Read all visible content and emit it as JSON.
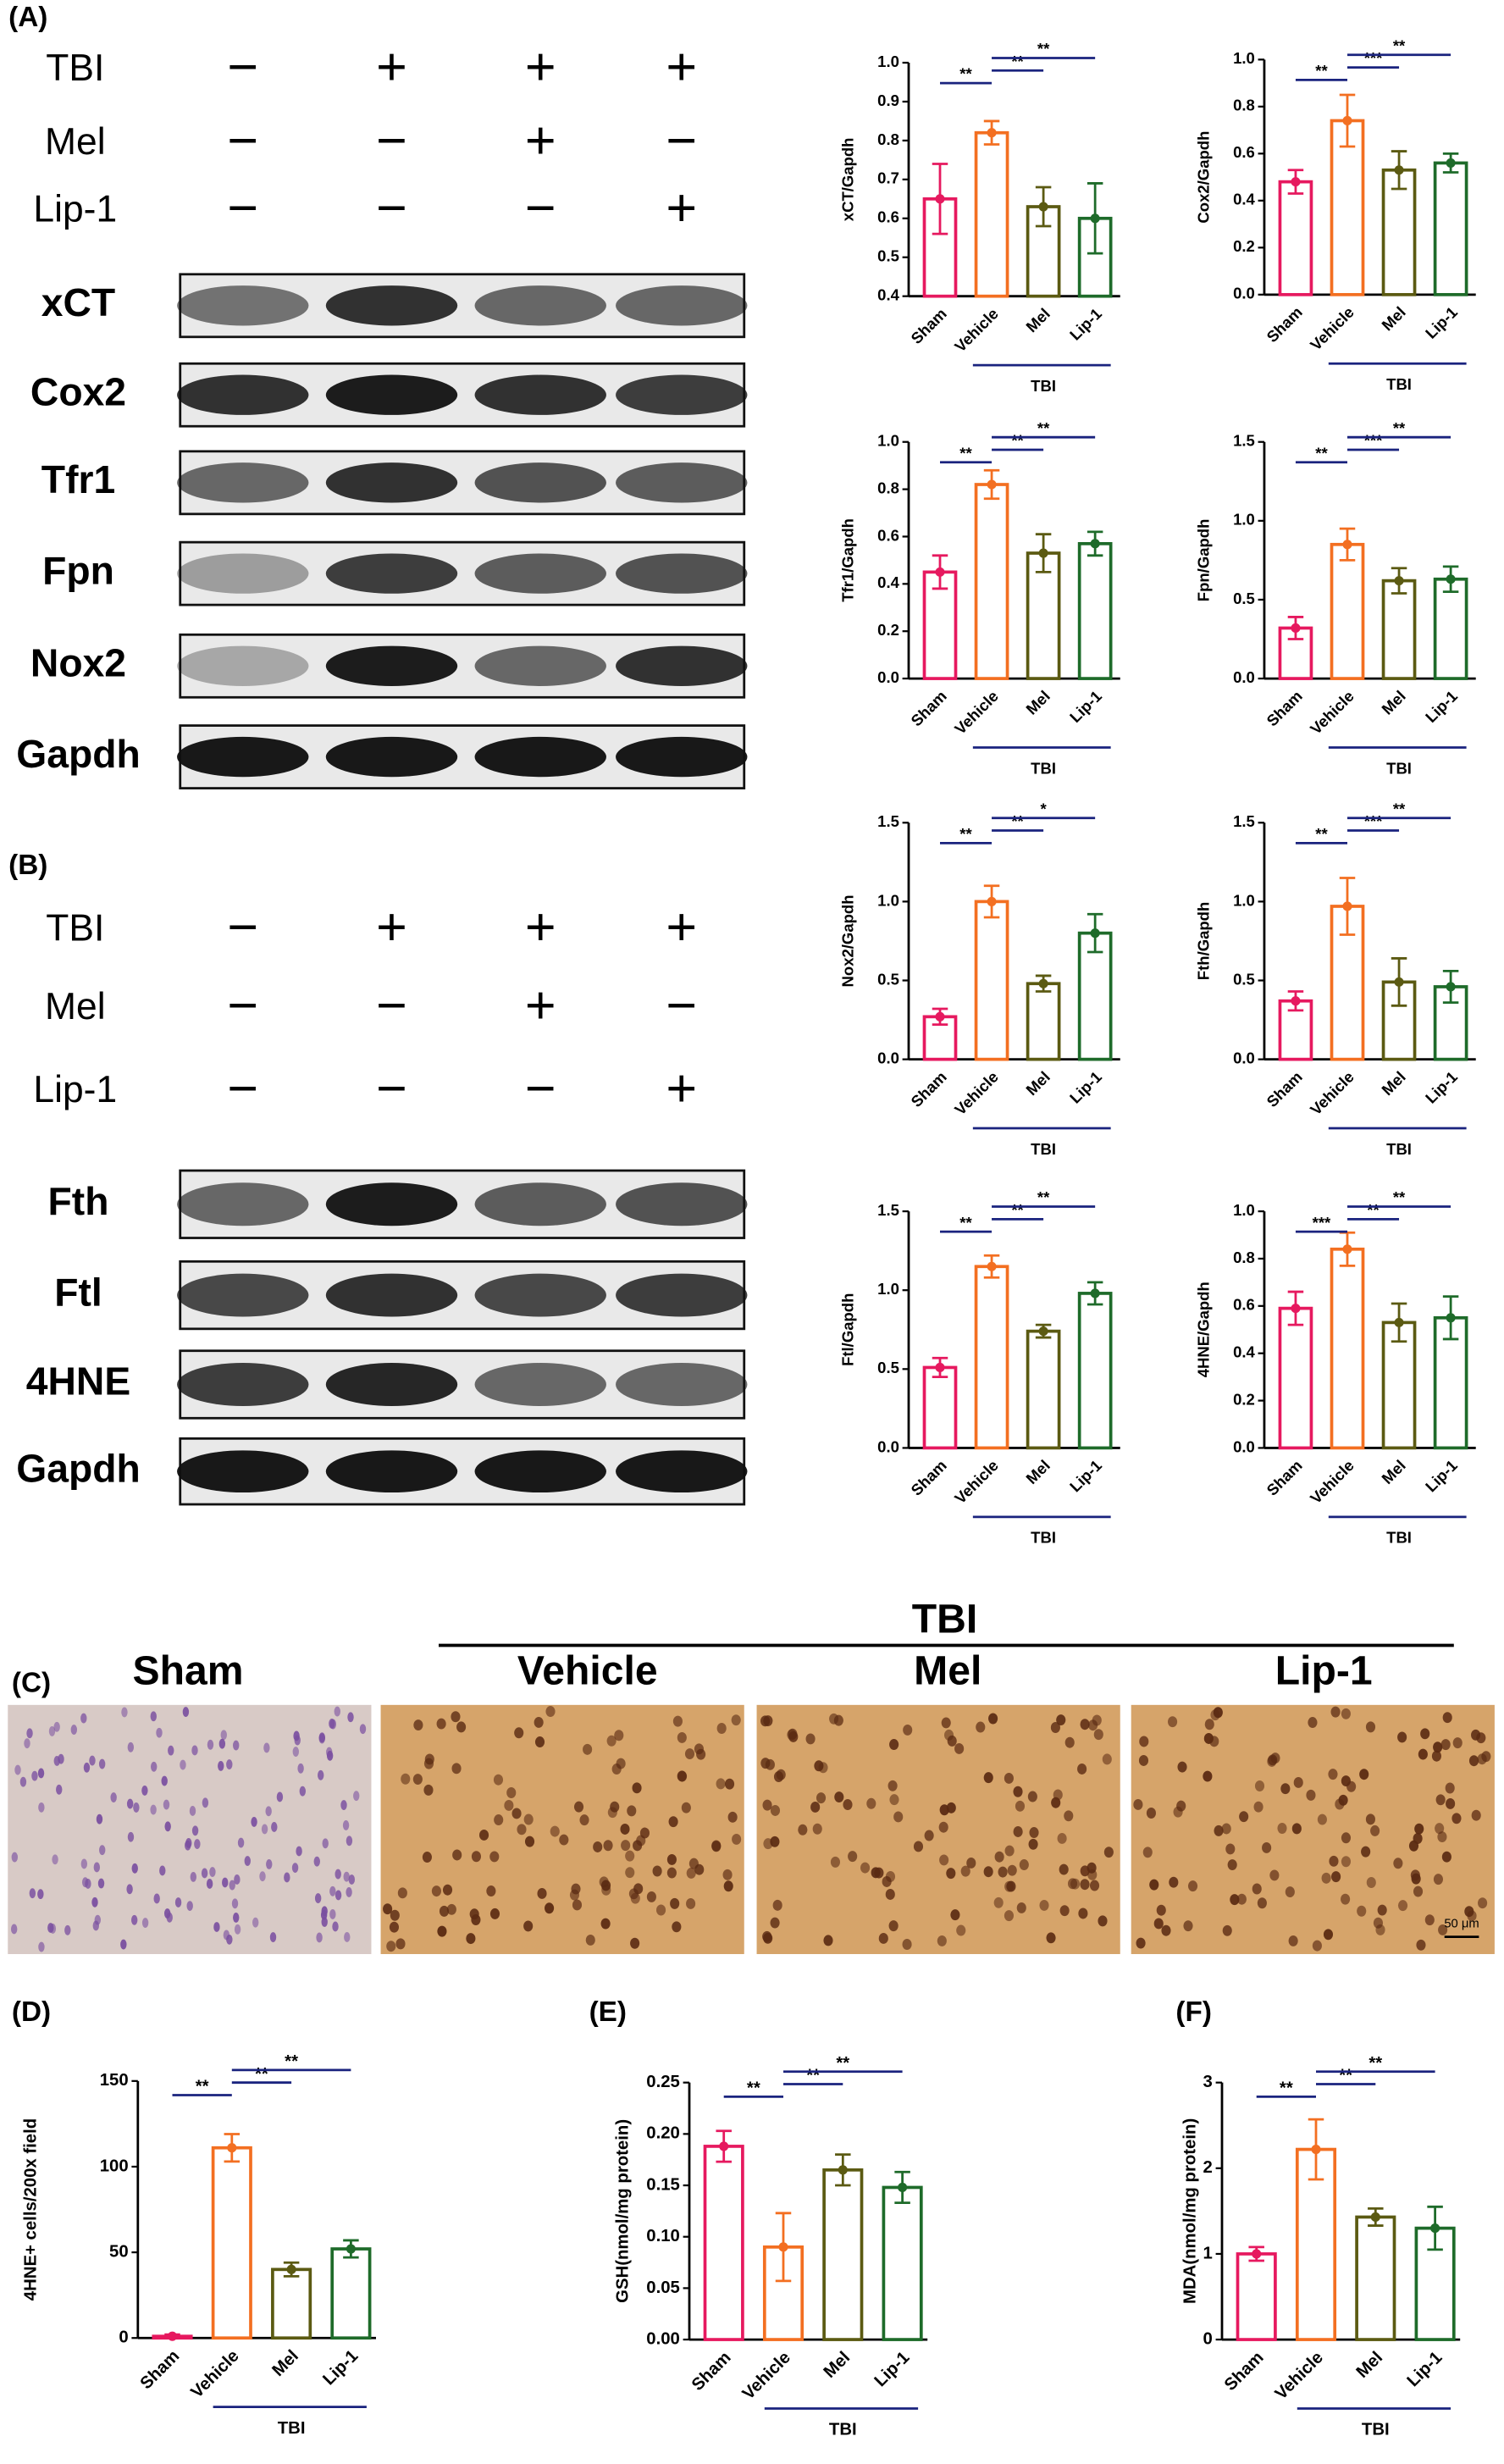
{
  "panel_labels": [
    "(A)",
    "(B)",
    "(C)",
    "(D)",
    "(E)",
    "(F)"
  ],
  "blots": [
    {
      "treatments": [
        {
          "name": "TBI",
          "signs": [
            "−",
            "+",
            "+",
            "+"
          ]
        },
        {
          "name": "Mel",
          "signs": [
            "−",
            "−",
            "+",
            "−"
          ]
        },
        {
          "name": "Lip-1",
          "signs": [
            "−",
            "−",
            "−",
            "+"
          ]
        }
      ],
      "proteins": [
        "xCT",
        "Cox2",
        "Tfr1",
        "Fpn",
        "Nox2",
        "Gapdh"
      ]
    },
    {
      "treatments": [
        {
          "name": "TBI",
          "signs": [
            "−",
            "+",
            "+",
            "+"
          ]
        },
        {
          "name": "Mel",
          "signs": [
            "−",
            "−",
            "+",
            "−"
          ]
        },
        {
          "name": "Lip-1",
          "signs": [
            "−",
            "−",
            "−",
            "+"
          ]
        }
      ],
      "proteins": [
        "Fth",
        "Ftl",
        "4HNE",
        "Gapdh"
      ]
    }
  ],
  "micrograph": {
    "group_label": "TBI",
    "headers": [
      "Sham",
      "Vehicle",
      "Mel",
      "Lip-1"
    ],
    "scale_bar": "50 μm"
  },
  "chart_data": [
    {
      "type": "bar",
      "y_label": "xCT/Gapdh",
      "categories": [
        "Sham",
        "Vehicle",
        "Mel",
        "Lip-1"
      ],
      "values": [
        0.65,
        0.82,
        0.63,
        0.6
      ],
      "errors": [
        0.09,
        0.03,
        0.05,
        0.09
      ],
      "colors": [
        "#e6195f",
        "#f36f21",
        "#5b5a12",
        "#1e6b2a"
      ],
      "group_label": "TBI",
      "ylim": [
        0.4,
        1
      ],
      "yticks": [
        0.4,
        0.5,
        0.6,
        0.7,
        0.8,
        0.9,
        {
          "value": 1,
          "label": "1.0"
        }
      ],
      "significance": [
        {
          "from": "Sham",
          "to": "Vehicle",
          "label": "**"
        },
        {
          "from": "Vehicle",
          "to": "Mel",
          "label": "**"
        },
        {
          "from": "Vehicle",
          "to": "Lip-1",
          "label": "**"
        }
      ]
    },
    {
      "type": "bar",
      "y_label": "Cox2/Gapdh",
      "categories": [
        "Sham",
        "Vehicle",
        "Mel",
        "Lip-1"
      ],
      "values": [
        0.48,
        0.74,
        0.53,
        0.56
      ],
      "errors": [
        0.05,
        0.11,
        0.08,
        0.04
      ],
      "colors": [
        "#e6195f",
        "#f36f21",
        "#5b5a12",
        "#1e6b2a"
      ],
      "group_label": "TBI",
      "ylim": [
        0,
        1
      ],
      "yticks": [
        {
          "value": 0,
          "label": "0.0"
        },
        0.2,
        0.4,
        0.6,
        0.8,
        {
          "value": 1,
          "label": "1.0"
        }
      ],
      "significance": [
        {
          "from": "Sham",
          "to": "Vehicle",
          "label": "**"
        },
        {
          "from": "Vehicle",
          "to": "Mel",
          "label": "***"
        },
        {
          "from": "Vehicle",
          "to": "Lip-1",
          "label": "**"
        }
      ]
    },
    {
      "type": "bar",
      "y_label": "Tfr1/Gapdh",
      "categories": [
        "Sham",
        "Vehicle",
        "Mel",
        "Lip-1"
      ],
      "values": [
        0.45,
        0.82,
        0.53,
        0.57
      ],
      "errors": [
        0.07,
        0.06,
        0.08,
        0.05
      ],
      "colors": [
        "#e6195f",
        "#f36f21",
        "#5b5a12",
        "#1e6b2a"
      ],
      "group_label": "TBI",
      "ylim": [
        0,
        1
      ],
      "yticks": [
        {
          "value": 0,
          "label": "0.0"
        },
        0.2,
        0.4,
        0.6,
        0.8,
        {
          "value": 1,
          "label": "1.0"
        }
      ],
      "significance": [
        {
          "from": "Sham",
          "to": "Vehicle",
          "label": "**"
        },
        {
          "from": "Vehicle",
          "to": "Mel",
          "label": "**"
        },
        {
          "from": "Vehicle",
          "to": "Lip-1",
          "label": "**"
        }
      ]
    },
    {
      "type": "bar",
      "y_label": "Fpn/Gapdh",
      "categories": [
        "Sham",
        "Vehicle",
        "Mel",
        "Lip-1"
      ],
      "values": [
        0.32,
        0.85,
        0.62,
        0.63
      ],
      "errors": [
        0.07,
        0.1,
        0.08,
        0.08
      ],
      "colors": [
        "#e6195f",
        "#f36f21",
        "#5b5a12",
        "#1e6b2a"
      ],
      "group_label": "TBI",
      "ylim": [
        0,
        1.5
      ],
      "yticks": [
        {
          "value": 0,
          "label": "0.0"
        },
        0.5,
        {
          "value": 1,
          "label": "1.0"
        },
        1.5
      ],
      "significance": [
        {
          "from": "Sham",
          "to": "Vehicle",
          "label": "**"
        },
        {
          "from": "Vehicle",
          "to": "Mel",
          "label": "***"
        },
        {
          "from": "Vehicle",
          "to": "Lip-1",
          "label": "**"
        }
      ]
    },
    {
      "type": "bar",
      "y_label": "Nox2/Gapdh",
      "categories": [
        "Sham",
        "Vehicle",
        "Mel",
        "Lip-1"
      ],
      "values": [
        0.27,
        1,
        0.48,
        0.8
      ],
      "errors": [
        0.05,
        0.1,
        0.05,
        0.12
      ],
      "colors": [
        "#e6195f",
        "#f36f21",
        "#5b5a12",
        "#1e6b2a"
      ],
      "group_label": "TBI",
      "ylim": [
        0,
        1.5
      ],
      "yticks": [
        {
          "value": 0,
          "label": "0.0"
        },
        0.5,
        {
          "value": 1,
          "label": "1.0"
        },
        1.5
      ],
      "significance": [
        {
          "from": "Sham",
          "to": "Vehicle",
          "label": "**"
        },
        {
          "from": "Vehicle",
          "to": "Mel",
          "label": "**"
        },
        {
          "from": "Vehicle",
          "to": "Lip-1",
          "label": "*"
        }
      ]
    },
    {
      "type": "bar",
      "y_label": "Fth/Gapdh",
      "categories": [
        "Sham",
        "Vehicle",
        "Mel",
        "Lip-1"
      ],
      "values": [
        0.37,
        0.97,
        0.49,
        0.46
      ],
      "errors": [
        0.06,
        0.18,
        0.15,
        0.1
      ],
      "colors": [
        "#e6195f",
        "#f36f21",
        "#5b5a12",
        "#1e6b2a"
      ],
      "group_label": "TBI",
      "ylim": [
        0,
        1.5
      ],
      "yticks": [
        {
          "value": 0,
          "label": "0.0"
        },
        0.5,
        {
          "value": 1,
          "label": "1.0"
        },
        1.5
      ],
      "significance": [
        {
          "from": "Sham",
          "to": "Vehicle",
          "label": "**"
        },
        {
          "from": "Vehicle",
          "to": "Mel",
          "label": "***"
        },
        {
          "from": "Vehicle",
          "to": "Lip-1",
          "label": "**"
        }
      ]
    },
    {
      "type": "bar",
      "y_label": "Ftl/Gapdh",
      "categories": [
        "Sham",
        "Vehicle",
        "Mel",
        "Lip-1"
      ],
      "values": [
        0.51,
        1.15,
        0.74,
        0.98
      ],
      "errors": [
        0.06,
        0.07,
        0.04,
        0.07
      ],
      "colors": [
        "#e6195f",
        "#f36f21",
        "#5b5a12",
        "#1e6b2a"
      ],
      "group_label": "TBI",
      "ylim": [
        0,
        1.5
      ],
      "yticks": [
        {
          "value": 0,
          "label": "0.0"
        },
        0.5,
        {
          "value": 1,
          "label": "1.0"
        },
        1.5
      ],
      "significance": [
        {
          "from": "Sham",
          "to": "Vehicle",
          "label": "**"
        },
        {
          "from": "Vehicle",
          "to": "Mel",
          "label": "**"
        },
        {
          "from": "Vehicle",
          "to": "Lip-1",
          "label": "**"
        }
      ]
    },
    {
      "type": "bar",
      "y_label": "4HNE/Gapdh",
      "categories": [
        "Sham",
        "Vehicle",
        "Mel",
        "Lip-1"
      ],
      "values": [
        0.59,
        0.84,
        0.53,
        0.55
      ],
      "errors": [
        0.07,
        0.07,
        0.08,
        0.09
      ],
      "colors": [
        "#e6195f",
        "#f36f21",
        "#5b5a12",
        "#1e6b2a"
      ],
      "group_label": "TBI",
      "ylim": [
        0,
        1
      ],
      "yticks": [
        {
          "value": 0,
          "label": "0.0"
        },
        0.2,
        0.4,
        0.6,
        0.8,
        {
          "value": 1,
          "label": "1.0"
        }
      ],
      "significance": [
        {
          "from": "Sham",
          "to": "Vehicle",
          "label": "***"
        },
        {
          "from": "Vehicle",
          "to": "Mel",
          "label": "**"
        },
        {
          "from": "Vehicle",
          "to": "Lip-1",
          "label": "**"
        }
      ]
    },
    {
      "type": "bar",
      "y_label": "4HNE+ cells/200x field",
      "categories": [
        "Sham",
        "Vehicle",
        "Mel",
        "Lip-1"
      ],
      "values": [
        1,
        111,
        40,
        52
      ],
      "errors": [
        1,
        8,
        4,
        5
      ],
      "colors": [
        "#e6195f",
        "#f36f21",
        "#5b5a12",
        "#1e6b2a"
      ],
      "group_label": "TBI",
      "ylim": [
        0,
        150
      ],
      "yticks": [
        0,
        50,
        100,
        150
      ],
      "significance": [
        {
          "from": "Sham",
          "to": "Vehicle",
          "label": "**"
        },
        {
          "from": "Vehicle",
          "to": "Mel",
          "label": "**"
        },
        {
          "from": "Vehicle",
          "to": "Lip-1",
          "label": "**"
        }
      ]
    },
    {
      "type": "bar",
      "y_label": "GSH(nmol/mg protein)",
      "categories": [
        "Sham",
        "Vehicle",
        "Mel",
        "Lip-1"
      ],
      "values": [
        0.188,
        0.09,
        0.165,
        0.148
      ],
      "errors": [
        0.015,
        0.033,
        0.015,
        0.015
      ],
      "colors": [
        "#e6195f",
        "#f36f21",
        "#5b5a12",
        "#1e6b2a"
      ],
      "group_label": "TBI",
      "ylim": [
        0,
        0.25
      ],
      "yticks": [
        {
          "value": 0,
          "label": "0.00"
        },
        0.05,
        {
          "value": 0.1,
          "label": "0.10"
        },
        0.15,
        {
          "value": 0.2,
          "label": "0.20"
        },
        0.25
      ],
      "significance": [
        {
          "from": "Sham",
          "to": "Vehicle",
          "label": "**"
        },
        {
          "from": "Vehicle",
          "to": "Mel",
          "label": "**"
        },
        {
          "from": "Vehicle",
          "to": "Lip-1",
          "label": "**"
        }
      ]
    },
    {
      "type": "bar",
      "y_label": "MDA(nmol/mg protein)",
      "categories": [
        "Sham",
        "Vehicle",
        "Mel",
        "Lip-1"
      ],
      "values": [
        1,
        2.22,
        1.43,
        1.3
      ],
      "errors": [
        0.08,
        0.35,
        0.1,
        0.25
      ],
      "colors": [
        "#e6195f",
        "#f36f21",
        "#5b5a12",
        "#1e6b2a"
      ],
      "group_label": "TBI",
      "ylim": [
        0,
        3
      ],
      "yticks": [
        0,
        1,
        2,
        3
      ],
      "significance": [
        {
          "from": "Sham",
          "to": "Vehicle",
          "label": "**"
        },
        {
          "from": "Vehicle",
          "to": "Mel",
          "label": "**"
        },
        {
          "from": "Vehicle",
          "to": "Lip-1",
          "label": "**"
        }
      ]
    }
  ]
}
